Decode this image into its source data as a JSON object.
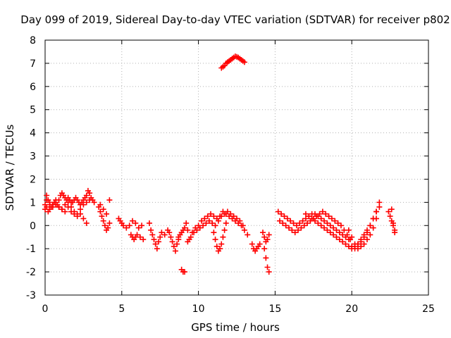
{
  "chart_data": {
    "type": "scatter",
    "title": "Day 099 of 2019, Sidereal Day-to-day VTEC variation (SDTVAR) for receiver p802",
    "xlabel": "GPS time / hours",
    "ylabel": "SDTVAR / TECUs",
    "xlim": [
      0,
      25
    ],
    "ylim": [
      -3,
      8
    ],
    "xticks": [
      "0",
      "5",
      "10",
      "15",
      "20",
      "25"
    ],
    "yticks": [
      "-3",
      "-2",
      "-1",
      "0",
      "1",
      "2",
      "3",
      "4",
      "5",
      "6",
      "7",
      "8"
    ],
    "grid": true,
    "marker": "plus",
    "color": "#ff0000",
    "series": [
      {
        "name": "SDTVAR",
        "x": [
          0.0,
          0.1,
          0.2,
          0.3,
          0.4,
          0.5,
          0.6,
          0.7,
          0.8,
          0.9,
          1.0,
          1.1,
          1.2,
          1.3,
          1.4,
          1.5,
          1.6,
          1.7,
          1.8,
          1.9,
          2.0,
          2.1,
          2.2,
          2.3,
          2.4,
          2.5,
          2.6,
          2.7,
          2.8,
          2.9,
          3.0,
          3.1,
          3.2,
          0.0,
          0.1,
          0.2,
          0.3,
          0.5,
          0.7,
          0.9,
          1.1,
          1.3,
          1.5,
          1.7,
          1.9,
          2.1,
          2.3,
          2.5,
          2.7,
          0.1,
          0.3,
          0.5,
          0.7,
          0.9,
          1.1,
          1.3,
          1.5,
          1.7,
          1.9,
          2.1,
          2.3,
          2.5,
          2.7,
          2.9,
          3.5,
          3.6,
          3.7,
          3.8,
          3.9,
          4.0,
          4.1,
          4.2,
          3.6,
          3.8,
          4.0,
          4.2,
          4.8,
          4.9,
          5.0,
          5.1,
          5.3,
          5.5,
          5.7,
          5.9,
          6.1,
          6.3,
          5.6,
          5.7,
          5.8,
          5.9,
          6.0,
          6.2,
          6.4,
          6.8,
          6.9,
          7.0,
          7.1,
          7.2,
          7.3,
          7.4,
          7.5,
          7.6,
          7.8,
          8.0,
          8.1,
          8.2,
          8.3,
          8.4,
          8.5,
          8.6,
          8.7,
          8.7,
          8.8,
          8.9,
          9.0,
          9.1,
          9.2,
          9.3,
          8.9,
          9.0,
          9.1,
          9.4,
          9.6,
          9.8,
          10.0,
          10.2,
          10.4,
          10.6,
          10.8,
          11.0,
          11.2,
          11.4,
          11.6,
          11.8,
          12.0,
          12.2,
          12.4,
          12.6,
          12.8,
          13.0,
          13.2,
          9.3,
          9.5,
          9.7,
          9.9,
          10.1,
          10.3,
          10.5,
          10.7,
          10.9,
          11.1,
          11.3,
          11.5,
          11.7,
          11.9,
          12.1,
          12.3,
          12.5,
          12.7,
          12.9,
          11.0,
          11.1,
          11.2,
          11.3,
          11.4,
          11.5,
          11.6,
          11.7,
          11.8,
          11.5,
          11.6,
          11.7,
          11.8,
          11.9,
          12.0,
          12.1,
          12.2,
          12.3,
          12.4,
          12.5,
          12.6,
          12.7,
          12.8,
          12.9,
          13.0,
          13.5,
          13.6,
          13.7,
          13.8,
          13.9,
          14.0,
          14.2,
          14.3,
          14.4,
          14.5,
          14.6,
          14.3,
          14.4,
          14.5,
          14.6,
          15.2,
          15.4,
          15.6,
          15.8,
          16.0,
          16.2,
          16.4,
          16.6,
          16.8,
          17.0,
          17.2,
          17.4,
          17.6,
          17.8,
          18.0,
          18.2,
          18.4,
          18.6,
          18.8,
          19.0,
          19.2,
          19.4,
          19.6,
          19.8,
          15.3,
          15.5,
          15.7,
          15.9,
          16.1,
          16.3,
          16.5,
          16.7,
          16.9,
          17.1,
          17.3,
          17.5,
          17.7,
          17.9,
          18.1,
          18.3,
          18.5,
          18.7,
          18.9,
          19.1,
          19.3,
          19.5,
          19.7,
          19.9,
          17.0,
          17.2,
          17.4,
          17.6,
          17.8,
          18.0,
          18.2,
          18.4,
          18.6,
          18.8,
          19.0,
          19.2,
          19.4,
          19.6,
          19.8,
          20.0,
          20.2,
          20.4,
          20.6,
          20.8,
          21.0,
          21.2,
          21.4,
          21.6,
          19.8,
          20.0,
          20.2,
          20.4,
          20.6,
          20.8,
          21.0,
          21.2,
          21.4,
          21.6,
          21.8,
          20.0,
          20.2,
          20.4,
          20.6,
          20.8,
          21.0,
          21.2,
          21.4,
          21.6,
          21.8,
          22.4,
          22.5,
          22.6,
          22.7,
          22.8,
          22.6,
          22.7,
          22.8
        ],
        "y": [
          0.9,
          1.3,
          1.1,
          0.9,
          0.8,
          0.9,
          1.0,
          1.1,
          0.9,
          1.1,
          1.3,
          1.4,
          1.3,
          1.2,
          1.1,
          1.2,
          1.1,
          1.0,
          1.0,
          1.1,
          1.2,
          1.1,
          1.0,
          0.9,
          1.0,
          1.1,
          1.2,
          1.3,
          1.5,
          1.4,
          1.2,
          1.1,
          1.0,
          0.7,
          0.8,
          0.6,
          0.7,
          0.8,
          0.9,
          0.8,
          0.7,
          0.6,
          0.8,
          0.6,
          0.5,
          0.4,
          0.5,
          0.3,
          0.1,
          1.1,
          1.0,
          0.9,
          1.0,
          0.8,
          0.7,
          0.9,
          1.0,
          0.8,
          0.6,
          0.5,
          0.7,
          0.9,
          1.0,
          1.1,
          0.8,
          0.6,
          0.4,
          0.2,
          0.0,
          -0.2,
          -0.1,
          0.1,
          0.9,
          0.7,
          0.5,
          1.1,
          0.3,
          0.2,
          0.1,
          0.0,
          -0.1,
          0.0,
          0.2,
          0.1,
          -0.1,
          0.0,
          -0.4,
          -0.5,
          -0.6,
          -0.5,
          -0.4,
          -0.5,
          -0.6,
          0.1,
          -0.2,
          -0.4,
          -0.6,
          -0.8,
          -1.0,
          -0.7,
          -0.5,
          -0.3,
          -0.4,
          -0.2,
          -0.3,
          -0.5,
          -0.7,
          -0.9,
          -1.1,
          -0.8,
          -0.5,
          -0.6,
          -0.4,
          -0.3,
          -0.2,
          -0.1,
          0.1,
          -0.2,
          -1.9,
          -2.0,
          -2.0,
          -0.6,
          -0.3,
          -0.1,
          0.0,
          0.2,
          0.3,
          0.4,
          0.5,
          0.4,
          0.3,
          0.4,
          0.6,
          0.5,
          0.4,
          0.3,
          0.2,
          0.1,
          0.0,
          -0.2,
          -0.4,
          -0.7,
          -0.5,
          -0.3,
          -0.2,
          -0.1,
          0.0,
          0.1,
          0.2,
          0.1,
          0.0,
          0.2,
          0.4,
          0.5,
          0.6,
          0.5,
          0.4,
          0.3,
          0.2,
          0.0,
          -0.3,
          -0.6,
          -0.9,
          -1.1,
          -1.0,
          -0.8,
          -0.5,
          -0.2,
          0.1,
          6.8,
          6.85,
          6.9,
          7.0,
          7.05,
          7.1,
          7.15,
          7.2,
          7.25,
          7.3,
          7.28,
          7.25,
          7.2,
          7.15,
          7.1,
          7.05,
          -0.8,
          -1.0,
          -1.1,
          -1.0,
          -0.9,
          -0.8,
          -0.3,
          -0.5,
          -0.7,
          -0.6,
          -0.4,
          -1.0,
          -1.4,
          -1.8,
          -2.0,
          0.6,
          0.5,
          0.4,
          0.3,
          0.2,
          0.1,
          0.0,
          0.1,
          0.2,
          0.3,
          0.4,
          0.5,
          0.5,
          0.4,
          0.3,
          0.2,
          0.1,
          0.0,
          -0.1,
          -0.2,
          -0.3,
          -0.4,
          -0.5,
          -0.6,
          0.2,
          0.1,
          0.0,
          -0.1,
          -0.2,
          -0.3,
          -0.2,
          -0.1,
          0.0,
          0.1,
          0.2,
          0.3,
          0.4,
          0.5,
          0.6,
          0.5,
          0.4,
          0.3,
          0.2,
          0.1,
          0.0,
          -0.2,
          -0.4,
          -0.6,
          0.5,
          0.4,
          0.3,
          0.2,
          0.1,
          0.0,
          -0.1,
          -0.2,
          -0.3,
          -0.4,
          -0.5,
          -0.6,
          -0.7,
          -0.8,
          -0.9,
          -1.0,
          -0.9,
          -0.8,
          -0.7,
          -0.5,
          -0.3,
          0.0,
          0.3,
          0.6,
          -0.2,
          -0.5,
          -0.8,
          -1.0,
          -0.9,
          -0.8,
          -0.6,
          -0.4,
          -0.1,
          0.3,
          0.8,
          -0.9,
          -1.0,
          -0.8,
          -0.6,
          -0.4,
          -0.2,
          0.0,
          0.3,
          0.6,
          1.0,
          0.6,
          0.4,
          0.2,
          0.0,
          -0.2,
          0.7,
          0.1,
          -0.3
        ]
      }
    ]
  }
}
